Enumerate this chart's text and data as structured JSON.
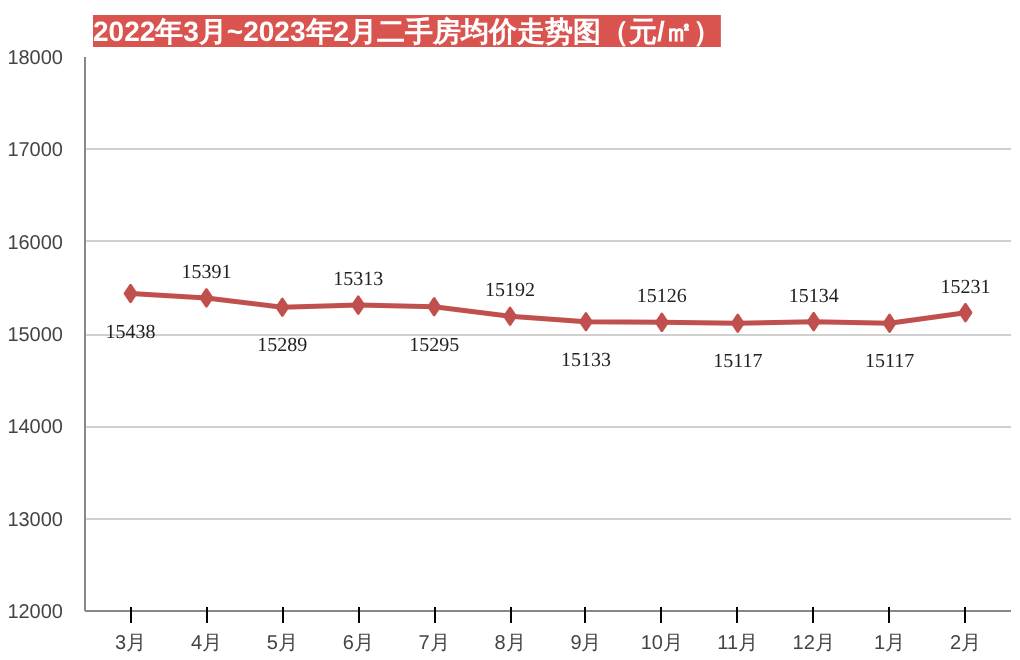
{
  "chart_data": {
    "type": "line",
    "title": "2022年3月~2023年2月二手房均价走势图（元/㎡）",
    "categories": [
      "3月",
      "4月",
      "5月",
      "6月",
      "7月",
      "8月",
      "9月",
      "10月",
      "11月",
      "12月",
      "1月",
      "2月"
    ],
    "series": [
      {
        "color": "#c0504d",
        "values": [
          15438,
          15391,
          15289,
          15313,
          15295,
          15192,
          15133,
          15126,
          15117,
          15134,
          15117,
          15231
        ]
      }
    ],
    "ylim": [
      12000,
      18000
    ],
    "yticks": [
      12000,
      13000,
      14000,
      15000,
      16000,
      17000,
      18000
    ],
    "grid": "y",
    "marker": "diamond",
    "data_labels": true
  }
}
